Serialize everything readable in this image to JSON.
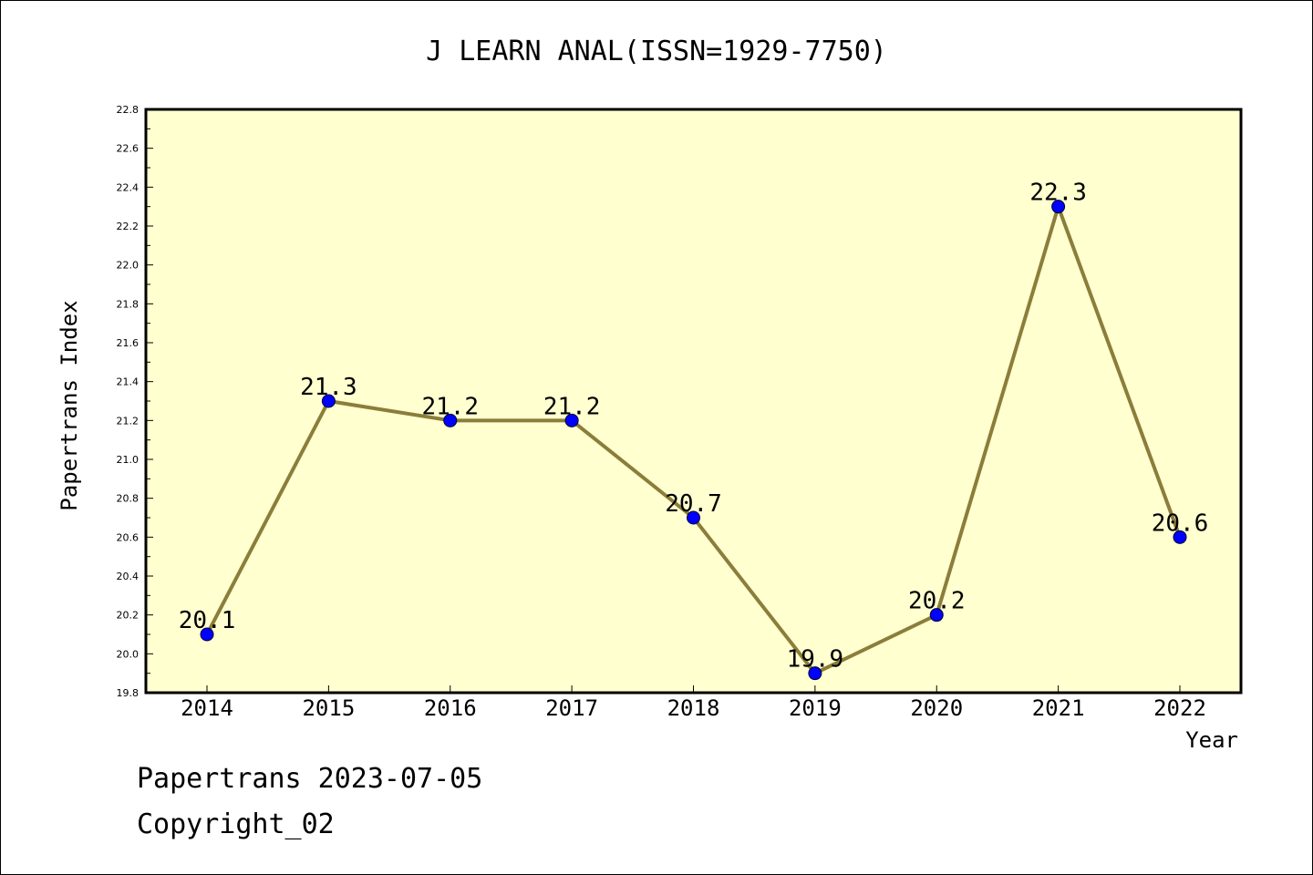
{
  "chart_data": {
    "type": "line",
    "title": "J LEARN ANAL(ISSN=1929-7750)",
    "xlabel": "Year",
    "ylabel": "Papertrans Index",
    "categories": [
      "2014",
      "2015",
      "2016",
      "2017",
      "2018",
      "2019",
      "2020",
      "2021",
      "2022"
    ],
    "series": [
      {
        "values": [
          20.1,
          21.3,
          21.2,
          21.2,
          20.7,
          19.9,
          20.2,
          22.3,
          20.6
        ],
        "data_labels": [
          "20.1",
          "21.3",
          "21.2",
          "21.2",
          "20.7",
          "19.9",
          "20.2",
          "22.3",
          "20.6"
        ],
        "line_color": "#8b7d3a",
        "marker_color": "#0000ff"
      }
    ],
    "ylim": [
      19.8,
      22.8
    ],
    "yticks": [
      "19.8",
      "20.0",
      "20.2",
      "20.4",
      "20.6",
      "20.8",
      "21.0",
      "21.2",
      "21.4",
      "21.6",
      "21.8",
      "22.0",
      "22.2",
      "22.4",
      "22.6",
      "22.8"
    ],
    "plot_background": "#ffffd0",
    "grid": false,
    "legend": "none"
  },
  "footer": {
    "line1": "Papertrans 2023-07-05",
    "line2": "Copyright_02"
  }
}
